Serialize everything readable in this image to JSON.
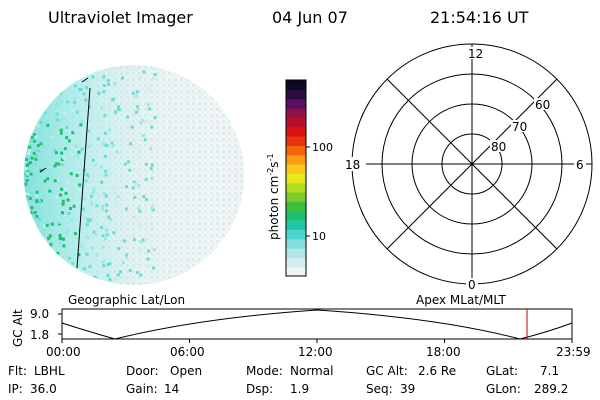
{
  "header": {
    "instrument": "Ultraviolet Imager",
    "date": "04 Jun 07",
    "time": "21:54:16 UT"
  },
  "colorbar": {
    "unit_label_html": "photon cm<tspan dy='-5' font-size='8'>-2</tspan><tspan dy='5'>s</tspan><tspan dy='-5' font-size='8'>-1</tspan>",
    "ticks": [
      "100",
      "10"
    ],
    "colors": [
      "#eef4f4",
      "#d2eeee",
      "#b0e6e6",
      "#84dcdc",
      "#4ed4cc",
      "#20c8a8",
      "#20c070",
      "#3cc03c",
      "#7ccc2c",
      "#b4dc20",
      "#e8e81c",
      "#fcc818",
      "#fc9a12",
      "#f4640e",
      "#ea3410",
      "#d81414",
      "#b8102c",
      "#901048",
      "#581060",
      "#2a0c40",
      "#0c0820"
    ]
  },
  "polar": {
    "mlt_labels": [
      "12",
      "18",
      "6",
      "0"
    ],
    "lat_labels": [
      "60",
      "70",
      "80"
    ]
  },
  "timeline": {
    "left_title": "Geographic Lat/Lon",
    "right_title": "Apex MLat/MLT",
    "axis_label": "GC Alt",
    "y_ticks": [
      "9.0",
      "1.8"
    ],
    "x_ticks": [
      "00:00",
      "06:00",
      "12:00",
      "18:00",
      "23:59"
    ],
    "marker_color": "#cc0000"
  },
  "info": {
    "row1": [
      {
        "label": "Flt:",
        "value": "LBHL"
      },
      {
        "label": "Door:",
        "value": "Open"
      },
      {
        "label": "Mode:",
        "value": "Normal"
      },
      {
        "label": "GC Alt:",
        "value": "2.6 Re"
      },
      {
        "label": "GLat:",
        "value": "7.1"
      }
    ],
    "row2": [
      {
        "label": "IP:",
        "value": "36.0"
      },
      {
        "label": "Gain:",
        "value": "14"
      },
      {
        "label": "Dsp:",
        "value": "1.9"
      },
      {
        "label": "Seq:",
        "value": "39"
      },
      {
        "label": "GLon:",
        "value": "289.2"
      }
    ]
  }
}
